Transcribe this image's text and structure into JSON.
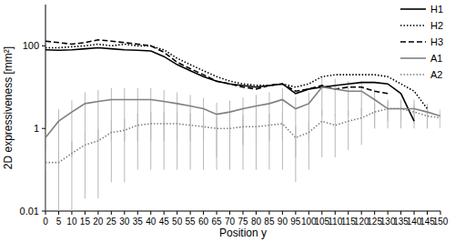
{
  "chart_data": {
    "type": "line",
    "x_label": "Position y",
    "y_label": "2D expressiveness [mm²]",
    "log": "y",
    "legend": "top-right",
    "xlim": [
      0,
      150
    ],
    "xticks": [
      0,
      5,
      10,
      15,
      20,
      25,
      30,
      35,
      40,
      45,
      50,
      55,
      60,
      65,
      70,
      75,
      80,
      85,
      90,
      95,
      100,
      105,
      110,
      115,
      120,
      125,
      130,
      135,
      140,
      145,
      150
    ],
    "ylim": [
      0.01,
      1000
    ],
    "yticks": [
      0.01,
      1,
      100
    ],
    "x": [
      0,
      5,
      10,
      15,
      20,
      25,
      30,
      35,
      40,
      45,
      50,
      55,
      60,
      65,
      70,
      75,
      80,
      85,
      90,
      95,
      100,
      105,
      110,
      115,
      120,
      125,
      130,
      135,
      140,
      145,
      150
    ],
    "series": [
      {
        "name": "H1",
        "color": "#000000",
        "line_style": "solid",
        "values": [
          80,
          78,
          80,
          85,
          90,
          85,
          80,
          78,
          75,
          55,
          35,
          25,
          18,
          14,
          12,
          11,
          10,
          11,
          12,
          7,
          9,
          10,
          11,
          12,
          13,
          13,
          12,
          7,
          1.5,
          null,
          null
        ]
      },
      {
        "name": "H2",
        "color": "#000000",
        "line_style": "dotted",
        "values": [
          90,
          90,
          95,
          100,
          110,
          100,
          110,
          100,
          100,
          80,
          50,
          35,
          25,
          18,
          14,
          12,
          11,
          11,
          12,
          10,
          12,
          18,
          20,
          20,
          20,
          20,
          18,
          12,
          8,
          3,
          null
        ]
      },
      {
        "name": "H3",
        "color": "#000000",
        "line_style": "dashed",
        "values": [
          130,
          120,
          110,
          120,
          140,
          130,
          120,
          110,
          100,
          70,
          40,
          28,
          20,
          14,
          12,
          10,
          9,
          11,
          12,
          8,
          9,
          11,
          9,
          10,
          10,
          8,
          7,
          null,
          null,
          null,
          null
        ]
      },
      {
        "name": "A1",
        "color": "#808080",
        "line_style": "solid",
        "values": [
          0.6,
          1.5,
          2.5,
          4,
          4.5,
          5,
          5,
          5,
          5,
          4.5,
          4,
          3.5,
          3,
          2.2,
          2.5,
          3,
          3.5,
          4,
          5,
          3,
          4,
          10,
          9,
          8,
          8,
          5,
          3,
          3,
          3,
          2.5,
          2
        ],
        "errors": [
          0.5,
          1.4,
          2.3,
          3.5,
          4,
          4.5,
          4.5,
          4.5,
          4.5,
          4,
          3.5,
          3,
          2.5,
          2,
          2.2,
          2.6,
          3,
          3.5,
          4.5,
          2.8,
          3.5,
          8,
          7,
          6,
          6,
          4,
          2,
          2,
          2,
          1.5,
          1
        ]
      },
      {
        "name": "A2",
        "color": "#808080",
        "line_style": "dotted",
        "values": [
          0.15,
          0.15,
          0.25,
          0.4,
          0.5,
          0.8,
          0.9,
          1.2,
          1.3,
          1.3,
          1.3,
          1.2,
          1.1,
          1.0,
          1.0,
          1.1,
          1.1,
          1.2,
          1.3,
          0.6,
          0.8,
          1.5,
          1.2,
          1.5,
          1.8,
          2.5,
          3,
          3,
          2.5,
          2,
          1.8
        ],
        "errors": [
          0.14,
          0.14,
          0.24,
          0.38,
          0.48,
          0.75,
          0.85,
          1.1,
          1.2,
          1.2,
          1.2,
          1.1,
          1.0,
          0.9,
          0.9,
          1.0,
          1.0,
          1.1,
          1.2,
          0.55,
          0.7,
          1.3,
          1.0,
          1.2,
          1.4,
          1.5,
          1.5,
          1.5,
          1.2,
          1,
          0.8
        ]
      }
    ]
  }
}
